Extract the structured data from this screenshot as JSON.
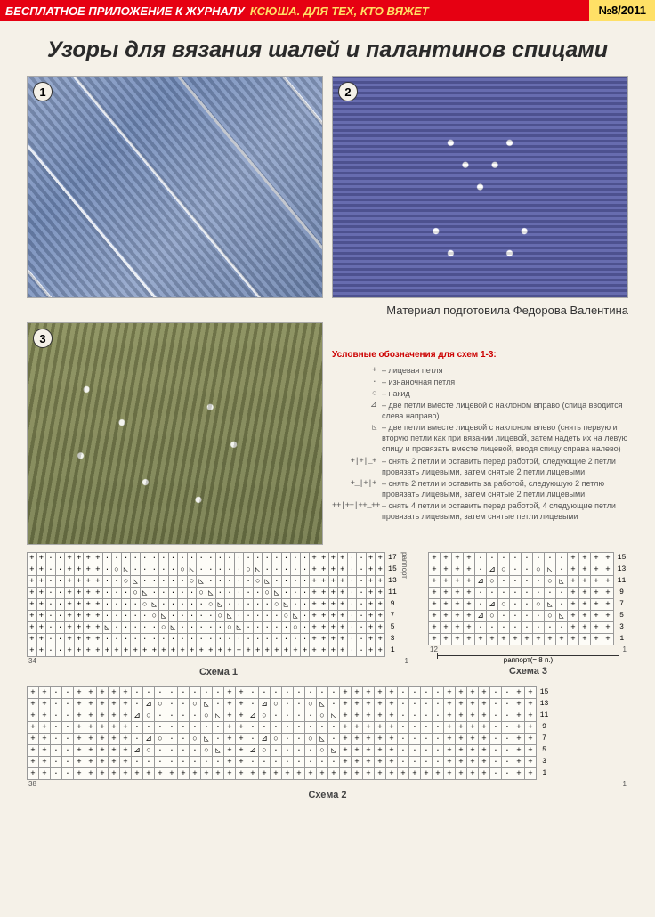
{
  "header": {
    "left": "БЕСПЛАТНОЕ ПРИЛОЖЕНИЕ К ЖУРНАЛУ",
    "mid": "КСЮША. ДЛЯ ТЕХ, КТО ВЯЖЕТ",
    "issue": "№8/2011"
  },
  "title": "Узоры для вязания шалей и палантинов спицами",
  "credit": "Материал подготовила Федорова Валентина",
  "badges": [
    "1",
    "2",
    "3"
  ],
  "legend": {
    "title": "Условные обозначения для схем 1-3:",
    "items": [
      {
        "sym": "+",
        "txt": "– лицевая петля"
      },
      {
        "sym": "·",
        "txt": "– изнаночная петля"
      },
      {
        "sym": "○",
        "txt": "– накид"
      },
      {
        "sym": "⊿",
        "txt": "– две петли вместе лицевой с наклоном вправо (спица вводится слева направо)"
      },
      {
        "sym": "◺",
        "txt": "– две петли вместе лицевой с наклоном влево (снять первую и вторую петли как при вязании лицевой, затем надеть их на левую спицу и провязать вместе лицевой, вводя спицу справа налево)"
      },
      {
        "sym": "+|+|_+",
        "txt": "– снять 2 петли и оставить перед работой, следующие 2 петли провязать лицевыми, затем снятые 2 петли лицевыми"
      },
      {
        "sym": "+_|+|+",
        "txt": "– снять 2 петли и оставить за работой, следующую 2 петлю провязать лицевыми, затем снятые 2 петли лицевыми"
      },
      {
        "sym": "++|++|++_++",
        "txt": "– снять 4 петли и оставить перед работой, 4 следующие петли провязать лицевыми, затем снятые петли лицевыми"
      }
    ]
  },
  "charts": {
    "c1": {
      "caption": "Схема 1",
      "left_num": "34",
      "right_num": "1",
      "side_label": "раппорт",
      "row_nums": [
        "17",
        "15",
        "13",
        "11",
        "9",
        "7",
        "5",
        "3",
        "1"
      ],
      "rows": [
        "++ · · ++++ · · · · · · · · · · · · · · · · · · · · · · ++++ · · ++",
        "++ · · ++++ · ○ ◺ · · · · · ○ ◺ · · · · · ○ ◺ · · · · · ++++ · · ++",
        "++ · · ++++ · · ○ ◺ · · · · · ○ ◺ · · · · · ○ ◺ · · · · ++++ · · ++",
        "++ · · ++++ · · · ○ ◺ · · · · · ○ ◺ · · · · · ○ ◺ · · · ++++ · · ++",
        "++ · · ++++ · · · · ○ ◺ · · · · · ○ ◺ · · · · · ○ ◺ · · ++++ · · ++",
        "++ · · ++++ · · · · · ○ ◺ · · · · · ○ ◺ · · · · · ○ ◺ · ++++ · · ++",
        "++ · · ++++ ◺ · · · · · ○ ◺ · · · · · ○ ◺ · · · · · ○ · ++++ · · ++",
        "++ · · ++++ · · · · · · · · · · · · · · · · · · · · · · ++++ · · ++",
        "++ · · ++++ + + + + + + + + + + + + + + + + + + + + + + ++++ · · ++"
      ]
    },
    "c3": {
      "caption": "Схема 3",
      "left_num": "12",
      "right_num": "1",
      "rapport_label": "раппорт(= 8 п.)",
      "row_nums": [
        "15",
        "13",
        "11",
        "9",
        "7",
        "5",
        "3",
        "1"
      ],
      "rows": [
        "++++ · · · · · · · · ++++",
        "++++ · ⊿ ○ · · ○ ◺ · ++++",
        "++++ ⊿ ○ · · · · ○ ◺ ++++",
        "++++ · · · · · · · · ++++",
        "++++ · ⊿ ○ · · ○ ◺ · ++++",
        "++++ ⊿ ○ · · · · ○ ◺ ++++",
        "++++ · · · · · · · · ++++",
        "++++ + + + + + + + + ++++"
      ]
    },
    "c2": {
      "caption": "Схема 2",
      "left_num": "38",
      "right_num": "1",
      "row_nums": [
        "15",
        "13",
        "11",
        "9",
        "7",
        "5",
        "3",
        "1"
      ],
      "rows": [
        "++ · · ++++ + · · · · · · · · + + · · · · · · · · + ++++ · · · · ++++ · · ++",
        "++ · · ++++ + · ⊿ ○ · · ○ ◺ · + + · ⊿ ○ · · ○ ◺ · + ++++ · · · · ++++ · · ++",
        "++ · · ++++ + ⊿ ○ · · · · ○ ◺ + + ⊿ ○ · · · · ○ ◺ + ++++ · · · · ++++ · · ++",
        "++ · · ++++ + · · · · · · · · + + · · · · · · · · + ++++ · · · · ++++ · · ++",
        "++ · · ++++ + · ⊿ ○ · · ○ ◺ · + + · ⊿ ○ · · ○ ◺ · + ++++ · · · · ++++ · · ++",
        "++ · · ++++ + ⊿ ○ · · · · ○ ◺ + + ⊿ ○ · · · · ○ ◺ + ++++ · · · · ++++ · · ++",
        "++ · · ++++ + · · · · · · · · + + · · · · · · · · + ++++ · · · · ++++ · · ++",
        "++ · · ++++ + + + + + + + + + + + + + + + + + + + + ++++ + + + + ++++ · · ++"
      ]
    }
  }
}
